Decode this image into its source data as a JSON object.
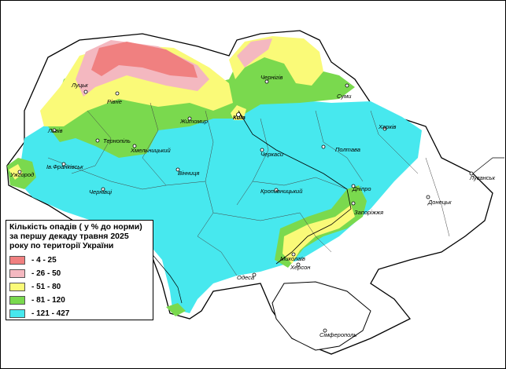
{
  "legend": {
    "title": "Кількість опадів ( у % до норми) за першу декаду травня 2025 року по території України",
    "classes": [
      {
        "label": "- 4 - 25",
        "color": "#f08080"
      },
      {
        "label": "- 26 - 50",
        "color": "#f4b8c0"
      },
      {
        "label": "- 51 - 80",
        "color": "#fafa78"
      },
      {
        "label": "- 81 - 120",
        "color": "#7ad94e"
      },
      {
        "label": "- 121 - 427",
        "color": "#47e8ee"
      }
    ]
  },
  "cities": {
    "lutsk": "Луцьк",
    "rivne": "Рівне",
    "zhytomyr": "Житомир",
    "kyiv": "Київ",
    "chernihiv": "Чернігів",
    "sumy": "Суми",
    "lviv": "Львів",
    "ternopil": "Тернопіль",
    "khmelnytskyi": "Хмельницький",
    "kharkiv": "Харків",
    "poltava": "Полтава",
    "cherkasy": "Черкаси",
    "uzhhorod": "Ужгород",
    "ivano_frankivsk": "Ів.Франківськ",
    "vinnytsia": "Вінниця",
    "chernivtsi": "Чернівці",
    "luhansk": "Луганськ",
    "donetsk": "Донецьк",
    "dnipro": "Дніпро",
    "zaporizhzhia": "Запоріжжя",
    "kropyvnytskyi": "Кропивницький",
    "mykolaiv": "Миколаїв",
    "kherson": "Херсон",
    "odesa": "Одеса",
    "simferopol": "Сімферополь"
  }
}
